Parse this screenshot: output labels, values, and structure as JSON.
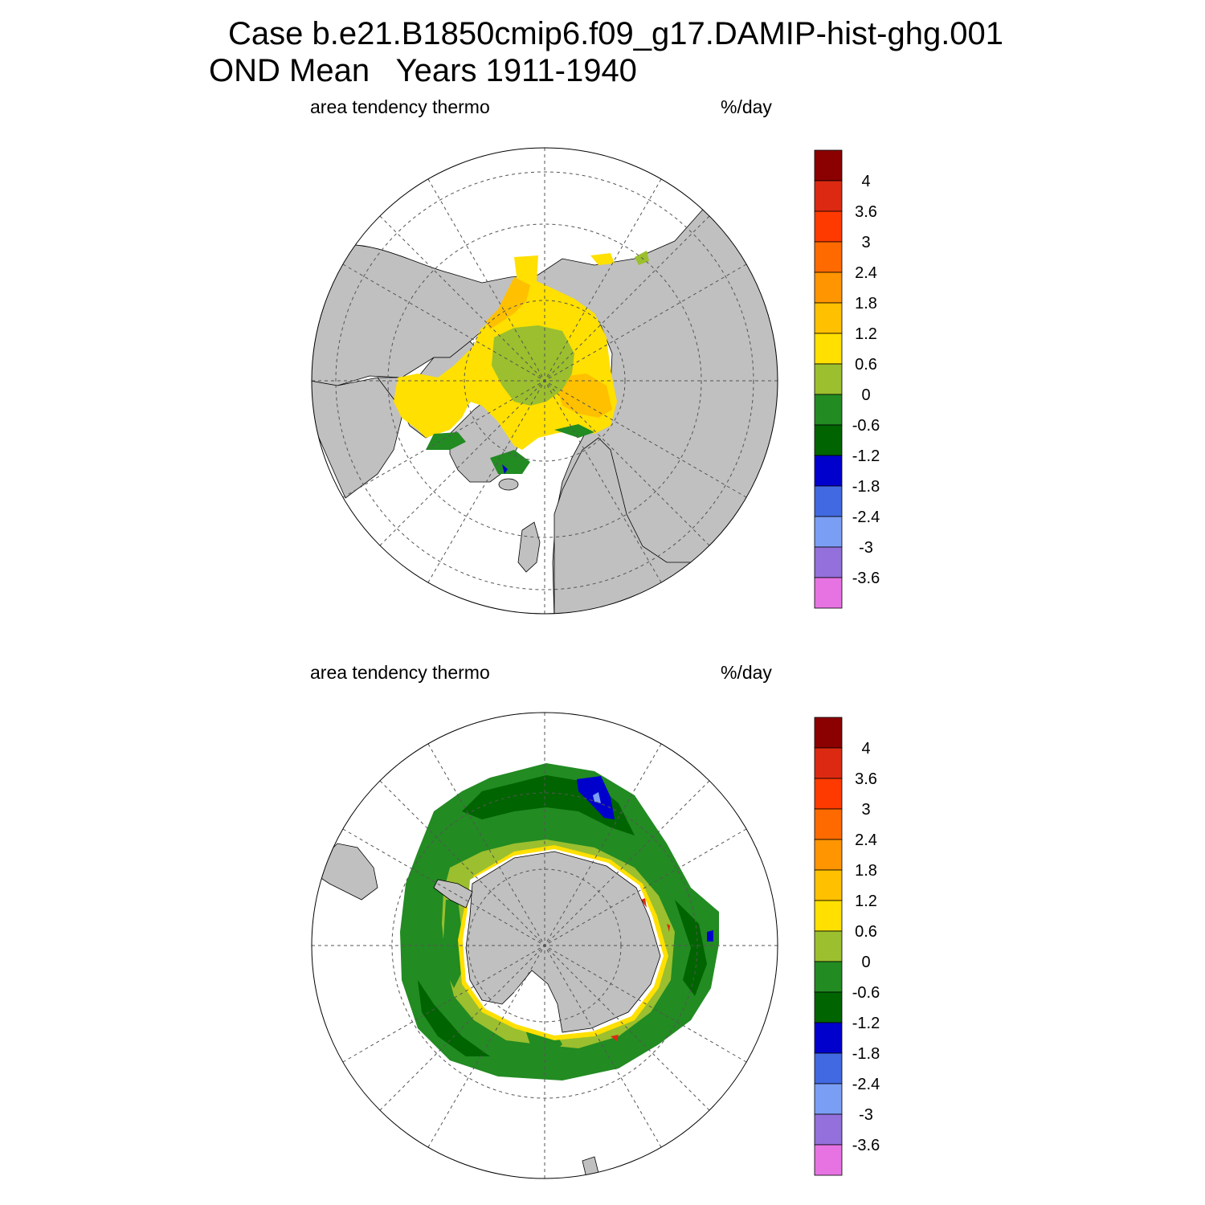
{
  "title": {
    "line1": "Case b.e21.B1850cmip6.f09_g17.DAMIP-hist-ghg.001",
    "line2": "OND Mean   Years 1911-1940"
  },
  "panels": [
    {
      "id": "north",
      "hemisphere": "Arctic",
      "variable_label": "area tendency thermo",
      "units_label": "%/day"
    },
    {
      "id": "south",
      "hemisphere": "Antarctic",
      "variable_label": "area tendency thermo",
      "units_label": "%/day"
    }
  ],
  "colorbar": {
    "tick_labels": [
      "4",
      "3.6",
      "3",
      "2.4",
      "1.8",
      "1.2",
      "0.6",
      "0",
      "-0.6",
      "-1.2",
      "-1.8",
      "-2.4",
      "-3",
      "-3.6"
    ],
    "colors_top_to_bottom": [
      "#8b0000",
      "#dc2a12",
      "#ff3a00",
      "#ff6a00",
      "#ff9500",
      "#ffc000",
      "#ffe000",
      "#9bbf2e",
      "#228b22",
      "#006400",
      "#0000cd",
      "#4169e1",
      "#7b9ef5",
      "#9370db",
      "#e773e3"
    ]
  },
  "map_colors": {
    "land": "#c0c0c0",
    "ocean_no_data": "#ffffff",
    "grid_line": "#555555"
  }
}
